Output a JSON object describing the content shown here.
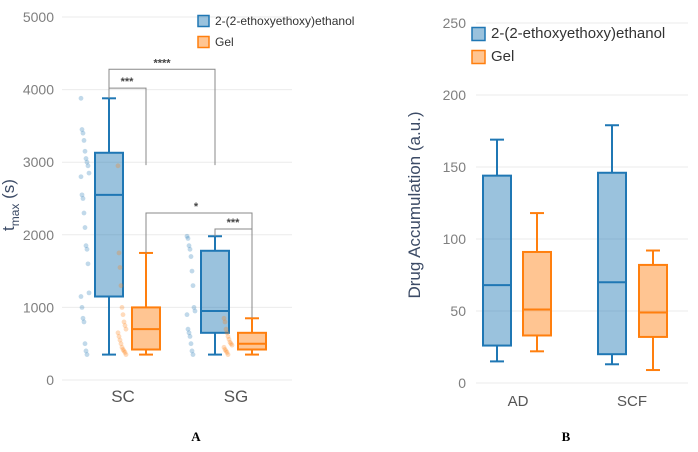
{
  "chart_data": [
    {
      "type": "box",
      "panel_label": "A",
      "ylabel_main": "t",
      "ylabel_sub": "max",
      "ylabel_unit": " (s)",
      "ylim": [
        0,
        5000
      ],
      "yticks": [
        "0",
        "1000",
        "2000",
        "3000",
        "4000",
        "5000"
      ],
      "categories": [
        "SC",
        "SG"
      ],
      "series": [
        {
          "name": "2-(2-ethoxyethoxy)ethanol",
          "color": "#1f77b4",
          "boxes": [
            {
              "min": 350,
              "q1": 1150,
              "median": 2550,
              "q3": 3130,
              "max": 3880
            },
            {
              "min": 350,
              "q1": 650,
              "median": 950,
              "q3": 1780,
              "max": 1980
            }
          ],
          "points": [
            [
              3880,
              3450,
              3400,
              3300,
              3150,
              3050,
              3000,
              2950,
              2850,
              2800,
              2550,
              2500,
              2300,
              2100,
              1850,
              1800,
              1600,
              1200,
              1150,
              1000,
              850,
              800,
              500,
              400,
              350
            ],
            [
              1980,
              1950,
              1850,
              1800,
              1700,
              1500,
              1300,
              1000,
              950,
              900,
              700,
              650,
              600,
              500,
              400,
              350
            ]
          ]
        },
        {
          "name": "Gel",
          "color": "#ff7f0e",
          "boxes": [
            {
              "min": 350,
              "q1": 420,
              "median": 700,
              "q3": 1000,
              "max": 1750
            },
            {
              "min": 350,
              "q1": 420,
              "median": 500,
              "q3": 650,
              "max": 850
            }
          ],
          "points": [
            [
              2950,
              1750,
              1550,
              1300,
              1000,
              900,
              800,
              750,
              700,
              650,
              600,
              550,
              500,
              450,
              420,
              400,
              380,
              350
            ],
            [
              850,
              800,
              700,
              650,
              600,
              560,
              520,
              500,
              480,
              450,
              420,
              400,
              380,
              350
            ]
          ]
        }
      ],
      "significance": [
        {
          "label": "***",
          "from": "SC blue",
          "to": "SC orange"
        },
        {
          "label": "****",
          "from": "SC blue",
          "to": "SG blue"
        },
        {
          "label": "*",
          "from": "SC orange",
          "to": "SG orange"
        },
        {
          "label": "***",
          "from": "SG blue",
          "to": "SG orange"
        }
      ],
      "legend_position": "top-right"
    },
    {
      "type": "box",
      "panel_label": "B",
      "ylabel": "Drug Accumulation (a.u.)",
      "ylim": [
        0,
        250
      ],
      "yticks": [
        "0",
        "50",
        "100",
        "150",
        "200",
        "250"
      ],
      "categories": [
        "AD",
        "SCF"
      ],
      "series": [
        {
          "name": "2-(2-ethoxyethoxy)ethanol",
          "color": "#1f77b4",
          "boxes": [
            {
              "min": 15,
              "q1": 26,
              "median": 68,
              "q3": 144,
              "max": 169
            },
            {
              "min": 13,
              "q1": 20,
              "median": 70,
              "q3": 146,
              "max": 179
            }
          ]
        },
        {
          "name": "Gel",
          "color": "#ff7f0e",
          "boxes": [
            {
              "min": 22,
              "q1": 33,
              "median": 51,
              "q3": 91,
              "max": 118
            },
            {
              "min": 9,
              "q1": 32,
              "median": 49,
              "q3": 82,
              "max": 92
            }
          ]
        }
      ],
      "legend_position": "top-right"
    }
  ]
}
